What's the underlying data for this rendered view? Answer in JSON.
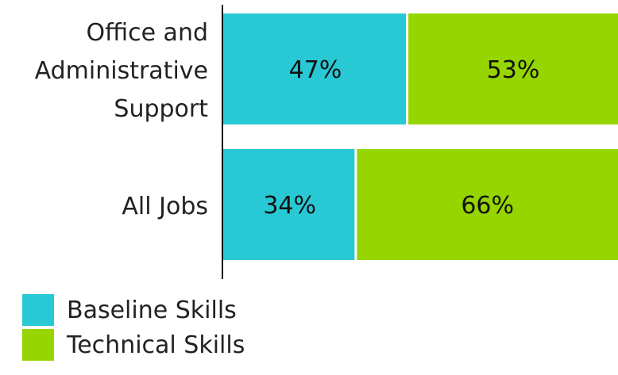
{
  "chart_data": {
    "type": "bar",
    "orientation": "horizontal",
    "stacked": true,
    "categories": [
      "Office and Administrative Support",
      "All Jobs"
    ],
    "category_lines": [
      [
        "Office and",
        "Administrative",
        "Support"
      ],
      [
        "All Jobs"
      ]
    ],
    "series": [
      {
        "name": "Baseline Skills",
        "values": [
          47,
          34
        ],
        "labels": [
          "47%",
          "34%"
        ],
        "color": "#28c9d4"
      },
      {
        "name": "Technical Skills",
        "values": [
          53,
          66
        ],
        "labels": [
          "53%",
          "66%"
        ],
        "color": "#96d500"
      }
    ],
    "xlim": [
      0,
      100
    ],
    "grid": false,
    "legend_position": "bottom-left"
  },
  "legend": {
    "baseline": "Baseline Skills",
    "technical": "Technical Skills"
  }
}
